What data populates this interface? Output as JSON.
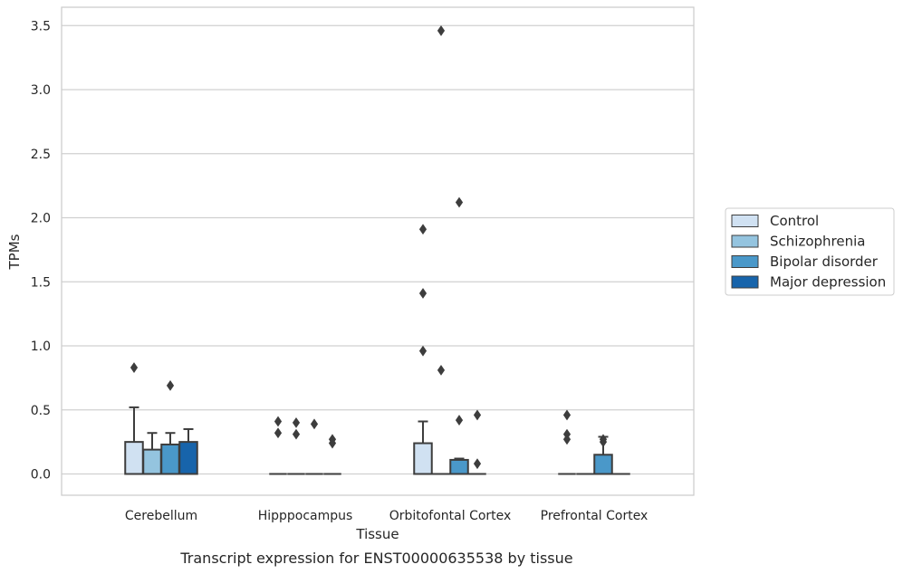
{
  "caption": "Transcript expression for ENST00000635538 by tissue",
  "chart_data": {
    "type": "box",
    "xlabel": "Tissue",
    "ylabel": "TPMs",
    "ylim": [
      -0.17,
      3.65
    ],
    "yticks": [
      0.0,
      0.5,
      1.0,
      1.5,
      2.0,
      2.5,
      3.0,
      3.5
    ],
    "ytick_labels": [
      "0.0",
      "0.5",
      "1.0",
      "1.5",
      "2.0",
      "2.5",
      "3.0",
      "3.5"
    ],
    "grid": "horizontal",
    "legend_position": "right",
    "categories": [
      "Cerebellum",
      "Hipppocampus",
      "Orbitofontal Cortex",
      "Prefrontal Cortex"
    ],
    "series": [
      {
        "name": "Control",
        "color": "#d0e1f2",
        "boxes": [
          {
            "q1": 0.0,
            "median": 0.0,
            "q3": 0.25,
            "whisker_low": 0.0,
            "whisker_high": 0.52,
            "outliers": [
              0.83
            ]
          },
          {
            "q1": 0.0,
            "median": 0.0,
            "q3": 0.0,
            "whisker_low": 0.0,
            "whisker_high": 0.0,
            "outliers": [
              0.41,
              0.32
            ]
          },
          {
            "q1": 0.0,
            "median": 0.0,
            "q3": 0.24,
            "whisker_low": 0.0,
            "whisker_high": 0.41,
            "outliers": [
              1.91,
              1.41,
              0.96
            ]
          },
          {
            "q1": 0.0,
            "median": 0.0,
            "q3": 0.0,
            "whisker_low": 0.0,
            "whisker_high": 0.0,
            "outliers": [
              0.46,
              0.31,
              0.27
            ]
          }
        ]
      },
      {
        "name": "Schizophrenia",
        "color": "#94c4df",
        "boxes": [
          {
            "q1": 0.0,
            "median": 0.0,
            "q3": 0.19,
            "whisker_low": 0.0,
            "whisker_high": 0.32,
            "outliers": []
          },
          {
            "q1": 0.0,
            "median": 0.0,
            "q3": 0.0,
            "whisker_low": 0.0,
            "whisker_high": 0.0,
            "outliers": [
              0.4,
              0.31
            ]
          },
          {
            "q1": 0.0,
            "median": 0.0,
            "q3": 0.0,
            "whisker_low": 0.0,
            "whisker_high": 0.0,
            "outliers": [
              3.46,
              0.81
            ]
          },
          {
            "q1": 0.0,
            "median": 0.0,
            "q3": 0.0,
            "whisker_low": 0.0,
            "whisker_high": 0.0,
            "outliers": []
          }
        ]
      },
      {
        "name": "Bipolar disorder",
        "color": "#4a98c9",
        "boxes": [
          {
            "q1": 0.0,
            "median": 0.0,
            "q3": 0.23,
            "whisker_low": 0.0,
            "whisker_high": 0.32,
            "outliers": [
              0.69
            ]
          },
          {
            "q1": 0.0,
            "median": 0.0,
            "q3": 0.0,
            "whisker_low": 0.0,
            "whisker_high": 0.0,
            "outliers": [
              0.39
            ]
          },
          {
            "q1": 0.0,
            "median": 0.0,
            "q3": 0.11,
            "whisker_low": 0.0,
            "whisker_high": 0.12,
            "outliers": [
              2.12,
              0.42
            ]
          },
          {
            "q1": 0.0,
            "median": 0.0,
            "q3": 0.15,
            "whisker_low": 0.0,
            "whisker_high": 0.29,
            "outliers": [
              0.27,
              0.25
            ]
          }
        ]
      },
      {
        "name": "Major depression",
        "color": "#1764ab",
        "boxes": [
          {
            "q1": 0.0,
            "median": 0.0,
            "q3": 0.25,
            "whisker_low": 0.0,
            "whisker_high": 0.35,
            "outliers": []
          },
          {
            "q1": 0.0,
            "median": 0.0,
            "q3": 0.0,
            "whisker_low": 0.0,
            "whisker_high": 0.0,
            "outliers": [
              0.27,
              0.24
            ]
          },
          {
            "q1": 0.0,
            "median": 0.0,
            "q3": 0.0,
            "whisker_low": 0.0,
            "whisker_high": 0.0,
            "outliers": [
              0.46,
              0.08
            ]
          },
          {
            "q1": 0.0,
            "median": 0.0,
            "q3": 0.0,
            "whisker_low": 0.0,
            "whisker_high": 0.0,
            "outliers": []
          }
        ]
      }
    ]
  }
}
